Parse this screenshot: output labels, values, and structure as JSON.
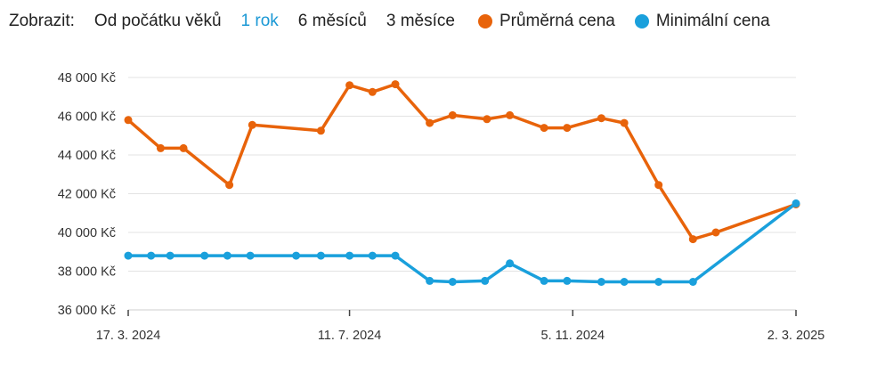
{
  "toolbar": {
    "label": "Zobrazit:",
    "ranges": [
      {
        "label": "Od počátku věků",
        "active": false
      },
      {
        "label": "1 rok",
        "active": true
      },
      {
        "label": "6 měsíců",
        "active": false
      },
      {
        "label": "3 měsíce",
        "active": false
      }
    ]
  },
  "chart_data": {
    "type": "line",
    "title": "",
    "xlabel": "",
    "ylabel": "",
    "xlim": [
      "2024-03-17",
      "2025-03-02"
    ],
    "ylim": [
      36000,
      48000
    ],
    "y_ticks": [
      36000,
      38000,
      40000,
      42000,
      44000,
      46000,
      48000
    ],
    "y_tick_labels": [
      "36 000 Kč",
      "38 000 Kč",
      "40 000 Kč",
      "42 000 Kč",
      "44 000 Kč",
      "46 000 Kč",
      "48 000 Kč"
    ],
    "x_ticks": [
      "2024-03-17",
      "2024-07-11",
      "2024-11-05",
      "2025-03-02"
    ],
    "x_tick_labels": [
      "17. 3. 2024",
      "11. 7. 2024",
      "5. 11. 2024",
      "2. 3. 2025"
    ],
    "grid": {
      "horizontal": true,
      "vertical": false
    },
    "legend": "top",
    "series": [
      {
        "name": "Průměrná cena",
        "color": "#e8630a",
        "x": [
          "2024-03-17",
          "2024-04-03",
          "2024-04-15",
          "2024-05-09",
          "2024-05-21",
          "2024-06-26",
          "2024-07-11",
          "2024-07-23",
          "2024-08-04",
          "2024-08-22",
          "2024-09-03",
          "2024-09-21",
          "2024-10-03",
          "2024-10-21",
          "2024-11-02",
          "2024-11-20",
          "2024-12-02",
          "2024-12-20",
          "2025-01-07",
          "2025-01-19",
          "2025-03-02"
        ],
        "values": [
          45800,
          44350,
          44350,
          42450,
          45550,
          45250,
          47600,
          47250,
          47650,
          45650,
          46050,
          45850,
          46050,
          45400,
          45400,
          45900,
          45650,
          42450,
          39650,
          40000,
          41450
        ]
      },
      {
        "name": "Minimální cena",
        "color": "#1aa0dc",
        "x": [
          "2024-03-17",
          "2024-03-29",
          "2024-04-08",
          "2024-04-26",
          "2024-05-08",
          "2024-05-20",
          "2024-06-13",
          "2024-06-26",
          "2024-07-11",
          "2024-07-23",
          "2024-08-04",
          "2024-08-22",
          "2024-09-03",
          "2024-09-20",
          "2024-10-03",
          "2024-10-21",
          "2024-11-02",
          "2024-11-20",
          "2024-12-02",
          "2024-12-20",
          "2025-01-07",
          "2025-03-02"
        ],
        "values": [
          38800,
          38800,
          38800,
          38800,
          38800,
          38800,
          38800,
          38800,
          38800,
          38800,
          38800,
          37500,
          37450,
          37500,
          38400,
          37500,
          37500,
          37450,
          37450,
          37450,
          37450,
          41500
        ]
      }
    ]
  }
}
